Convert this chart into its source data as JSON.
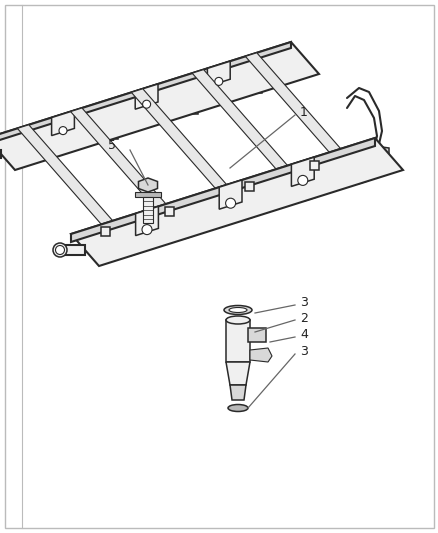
{
  "bg_color": "#ffffff",
  "outline_color": "#2a2a2a",
  "fill_light": "#f0f0f0",
  "fill_mid": "#d8d8d8",
  "fill_dark": "#b8b8b8",
  "fig_width": 4.39,
  "fig_height": 5.33,
  "lw_thick": 1.5,
  "lw_med": 1.1,
  "lw_thin": 0.8,
  "label_fontsize": 9,
  "label_color": "#222222",
  "leader_color": "#666666"
}
